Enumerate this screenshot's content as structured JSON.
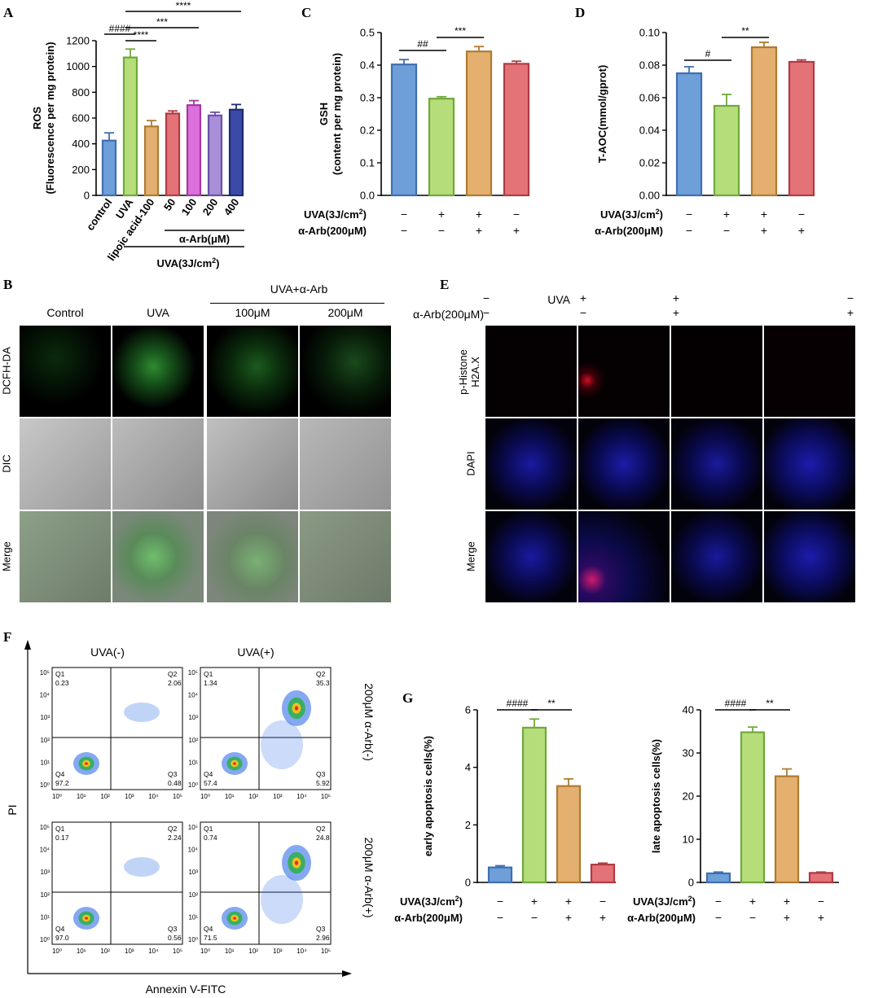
{
  "panels": {
    "A": "A",
    "B": "B",
    "C": "C",
    "D": "D",
    "E": "E",
    "F": "F",
    "G": "G"
  },
  "chartA": {
    "type": "bar",
    "ylabel_line1": "ROS",
    "ylabel_line2": "(Fluorescence per mg protein)",
    "ylim": [
      0,
      1200
    ],
    "yticks": [
      "0",
      "200",
      "400",
      "600",
      "800",
      "1000",
      "1200"
    ],
    "categories": [
      "control",
      "UVA",
      "lipoic acid-100",
      "50",
      "100",
      "200",
      "400"
    ],
    "values": [
      425,
      1070,
      535,
      635,
      700,
      620,
      665
    ],
    "errors": [
      60,
      65,
      45,
      20,
      35,
      25,
      40
    ],
    "colors": [
      "#6f9fd8",
      "#b5de7a",
      "#e4b070",
      "#e47378",
      "#dc70dc",
      "#a98ed8",
      "#3a4aa6"
    ],
    "edge_colors": [
      "#3e6fb0",
      "#6fa83a",
      "#b07a30",
      "#b03a44",
      "#a03aa0",
      "#6a50a8",
      "#1f2a70"
    ],
    "sig": [
      {
        "label": "####",
        "from": 0,
        "to": 1,
        "level": 1
      },
      {
        "label": "****",
        "from": 1,
        "to": 2,
        "level": 0
      },
      {
        "label": "***",
        "from": 1,
        "to": 4,
        "level": 2
      },
      {
        "label": "****",
        "from": 1,
        "to": 6,
        "level": 3
      }
    ],
    "group_label_arb": "α-Arb(μM)",
    "group_label_uva": "UVA(3J/cm2)",
    "group_label_uva_sup": "2"
  },
  "chartC": {
    "type": "bar",
    "ylabel_line1": "GSH",
    "ylabel_line2": "(content per mg protein)",
    "ylim": [
      0,
      0.5
    ],
    "yticks": [
      "0.0",
      "0.1",
      "0.2",
      "0.3",
      "0.4",
      "0.5"
    ],
    "values": [
      0.402,
      0.297,
      0.442,
      0.404
    ],
    "errors": [
      0.015,
      0.006,
      0.015,
      0.008
    ],
    "colors": [
      "#6f9fd8",
      "#b5de7a",
      "#e4b070",
      "#e47378"
    ],
    "edge_colors": [
      "#3e6fb0",
      "#6fa83a",
      "#b07a30",
      "#b03a44"
    ],
    "sig": [
      {
        "label": "##",
        "from": 0,
        "to": 1,
        "level": 0
      },
      {
        "label": "***",
        "from": 1,
        "to": 2,
        "level": 1
      }
    ],
    "row1_label": "UVA(3J/cm2)",
    "row2_label": "α-Arb(200μM)",
    "row1": [
      "−",
      "+",
      "+",
      "−"
    ],
    "row2": [
      "−",
      "−",
      "+",
      "+"
    ]
  },
  "chartD": {
    "type": "bar",
    "ylabel_line1": "T-AOC(mmol/gprot)",
    "ylim": [
      0,
      0.1
    ],
    "yticks": [
      "0.00",
      "0.02",
      "0.04",
      "0.06",
      "0.08",
      "0.10"
    ],
    "values": [
      0.075,
      0.055,
      0.091,
      0.082
    ],
    "errors": [
      0.004,
      0.007,
      0.003,
      0.0012
    ],
    "colors": [
      "#6f9fd8",
      "#b5de7a",
      "#e4b070",
      "#e47378"
    ],
    "edge_colors": [
      "#3e6fb0",
      "#6fa83a",
      "#b07a30",
      "#b03a44"
    ],
    "sig": [
      {
        "label": "#",
        "from": 0,
        "to": 1,
        "level": 0
      },
      {
        "label": "**",
        "from": 1,
        "to": 2,
        "level": 1
      }
    ],
    "row1_label": "UVA(3J/cm2)",
    "row2_label": "α-Arb(200μM)",
    "row1": [
      "−",
      "+",
      "+",
      "−"
    ],
    "row2": [
      "−",
      "−",
      "+",
      "+"
    ]
  },
  "chartG1": {
    "type": "bar",
    "ylabel_line1": "early apoptosis cells(%)",
    "ylim": [
      0,
      6
    ],
    "yticks": [
      "0",
      "2",
      "4",
      "6"
    ],
    "values": [
      0.52,
      5.38,
      3.35,
      0.62
    ],
    "errors": [
      0.06,
      0.3,
      0.25,
      0.05
    ],
    "colors": [
      "#6f9fd8",
      "#b5de7a",
      "#e4b070",
      "#e47378"
    ],
    "edge_colors": [
      "#3e6fb0",
      "#6fa83a",
      "#b07a30",
      "#b03a44"
    ],
    "sig": [
      {
        "label": "####",
        "from": 0,
        "to": 1,
        "level": 0
      },
      {
        "label": "**",
        "from": 1,
        "to": 2,
        "level": 0
      }
    ],
    "row1_label": "UVA(3J/cm2)",
    "row2_label": "α-Arb(200μM)",
    "row1": [
      "−",
      "+",
      "+",
      "−"
    ],
    "row2": [
      "−",
      "−",
      "+",
      "+"
    ]
  },
  "chartG2": {
    "type": "bar",
    "ylabel_line1": "late apoptosis cells(%)",
    "ylim": [
      0,
      40
    ],
    "yticks": [
      "0",
      "10",
      "20",
      "30",
      "40"
    ],
    "values": [
      2.1,
      34.8,
      24.6,
      2.2
    ],
    "errors": [
      0.3,
      1.2,
      1.7,
      0.2
    ],
    "colors": [
      "#6f9fd8",
      "#b5de7a",
      "#e4b070",
      "#e47378"
    ],
    "edge_colors": [
      "#3e6fb0",
      "#6fa83a",
      "#b07a30",
      "#b03a44"
    ],
    "sig": [
      {
        "label": "####",
        "from": 0,
        "to": 1,
        "level": 0
      },
      {
        "label": "**",
        "from": 1,
        "to": 2,
        "level": 0
      }
    ],
    "row1_label": "UVA(3J/cm2)",
    "row2_label": "α-Arb(200μM)",
    "row1": [
      "−",
      "+",
      "+",
      "−"
    ],
    "row2": [
      "−",
      "−",
      "+",
      "+"
    ]
  },
  "panelB": {
    "col_labels": [
      "Control",
      "UVA",
      "100μM",
      "200μM"
    ],
    "group_header": "UVA+α-Arb",
    "row_labels": [
      "DCFH-DA",
      "DIC",
      "Merge"
    ]
  },
  "panelE": {
    "uva_label": "UVA",
    "arb_label": "α-Arb(200μM)",
    "uva_row": [
      "−",
      "+",
      "+",
      "−"
    ],
    "arb_row": [
      "−",
      "−",
      "+",
      "+"
    ],
    "row_label_1a": "p-Histone",
    "row_label_1b": "H2A.X",
    "row_labels": [
      "DAPI",
      "Merge"
    ]
  },
  "panelF": {
    "col_labels": [
      "UVA(-)",
      "UVA(+)"
    ],
    "row_labels": [
      "200μM α-Arb(-)",
      "200μM α-Arb(+)"
    ],
    "y_axis": "PI",
    "x_axis": "Annexin V-FITC",
    "x_ticks": [
      "10⁰",
      "10¹",
      "10²",
      "10³",
      "10⁴",
      "10⁵"
    ],
    "y_ticks": [
      "10⁰",
      "10¹",
      "10²",
      "10³",
      "10⁴",
      "10⁵"
    ],
    "plots": [
      {
        "q1": "0.23",
        "q2": "2.06",
        "q3": "0.48",
        "q4": "97.2"
      },
      {
        "q1": "1.34",
        "q2": "35.3",
        "q3": "5.92",
        "q4": "57.4"
      },
      {
        "q1": "0.17",
        "q2": "2.24",
        "q3": "0.56",
        "q4": "97.0"
      },
      {
        "q1": "0.74",
        "q2": "24.8",
        "q3": "2.96",
        "q4": "71.5"
      }
    ],
    "quadrant_names": [
      "Q1",
      "Q2",
      "Q3",
      "Q4"
    ]
  }
}
